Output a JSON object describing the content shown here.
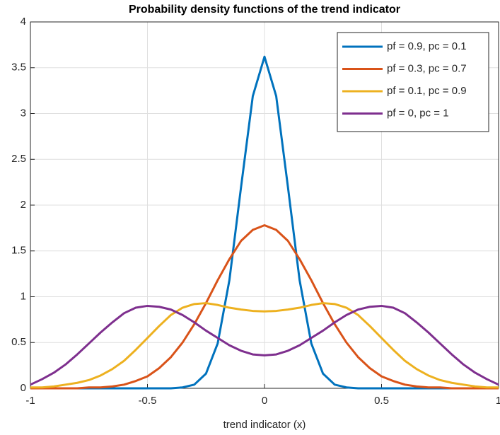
{
  "chart_data": {
    "type": "line",
    "title": "Probability density functions of the trend indicator",
    "x_label": "trend indicator (x)",
    "x": [
      -1,
      -0.95,
      -0.9,
      -0.85,
      -0.8,
      -0.75,
      -0.7,
      -0.65,
      -0.6,
      -0.55,
      -0.5,
      -0.45,
      -0.4,
      -0.35,
      -0.3,
      -0.25,
      -0.2,
      -0.15,
      -0.1,
      -0.05,
      0,
      0.05,
      0.1,
      0.15,
      0.2,
      0.25,
      0.3,
      0.35,
      0.4,
      0.45,
      0.5,
      0.55,
      0.6,
      0.65,
      0.7,
      0.75,
      0.8,
      0.85,
      0.9,
      0.95,
      1
    ],
    "series": [
      {
        "name": "pf = 0.9, pc = 0.1",
        "color": "#0072bd",
        "values": [
          0,
          0,
          0,
          0,
          0,
          0,
          0,
          0,
          0,
          0,
          0,
          0,
          0,
          0.01,
          0.04,
          0.16,
          0.49,
          1.18,
          2.2,
          3.19,
          3.62,
          3.19,
          2.2,
          1.18,
          0.49,
          0.16,
          0.04,
          0.01,
          0,
          0,
          0,
          0,
          0,
          0,
          0,
          0,
          0,
          0,
          0,
          0,
          0
        ]
      },
      {
        "name": "pf = 0.3, pc = 0.7",
        "color": "#d95319",
        "values": [
          0,
          0,
          0,
          0,
          0,
          0.01,
          0.01,
          0.02,
          0.04,
          0.08,
          0.13,
          0.22,
          0.34,
          0.5,
          0.7,
          0.93,
          1.18,
          1.41,
          1.61,
          1.73,
          1.78,
          1.73,
          1.61,
          1.41,
          1.18,
          0.93,
          0.7,
          0.5,
          0.34,
          0.22,
          0.13,
          0.08,
          0.04,
          0.02,
          0.01,
          0.01,
          0,
          0,
          0,
          0,
          0
        ]
      },
      {
        "name": "pf = 0.1, pc = 0.9",
        "color": "#edb120",
        "values": [
          0.01,
          0.01,
          0.02,
          0.04,
          0.06,
          0.09,
          0.14,
          0.21,
          0.3,
          0.42,
          0.55,
          0.68,
          0.8,
          0.88,
          0.92,
          0.93,
          0.91,
          0.88,
          0.86,
          0.845,
          0.84,
          0.845,
          0.86,
          0.88,
          0.91,
          0.93,
          0.92,
          0.88,
          0.8,
          0.68,
          0.55,
          0.42,
          0.3,
          0.21,
          0.14,
          0.09,
          0.06,
          0.04,
          0.02,
          0.01,
          0.01
        ]
      },
      {
        "name": "pf = 0, pc = 1",
        "color": "#7e2f8e",
        "values": [
          0.04,
          0.1,
          0.17,
          0.26,
          0.37,
          0.49,
          0.61,
          0.72,
          0.82,
          0.88,
          0.9,
          0.89,
          0.86,
          0.8,
          0.72,
          0.63,
          0.55,
          0.47,
          0.41,
          0.37,
          0.36,
          0.37,
          0.41,
          0.47,
          0.55,
          0.63,
          0.72,
          0.8,
          0.86,
          0.89,
          0.9,
          0.88,
          0.82,
          0.72,
          0.61,
          0.49,
          0.37,
          0.26,
          0.17,
          0.1,
          0.04
        ]
      }
    ],
    "xlim": [
      -1,
      1
    ],
    "xticks": [
      -1,
      -0.5,
      0,
      0.5,
      1
    ],
    "ylim": [
      0,
      4
    ],
    "yticks": [
      0,
      0.5,
      1,
      1.5,
      2,
      2.5,
      3,
      3.5,
      4
    ],
    "grid": true,
    "legend": "top-right"
  }
}
